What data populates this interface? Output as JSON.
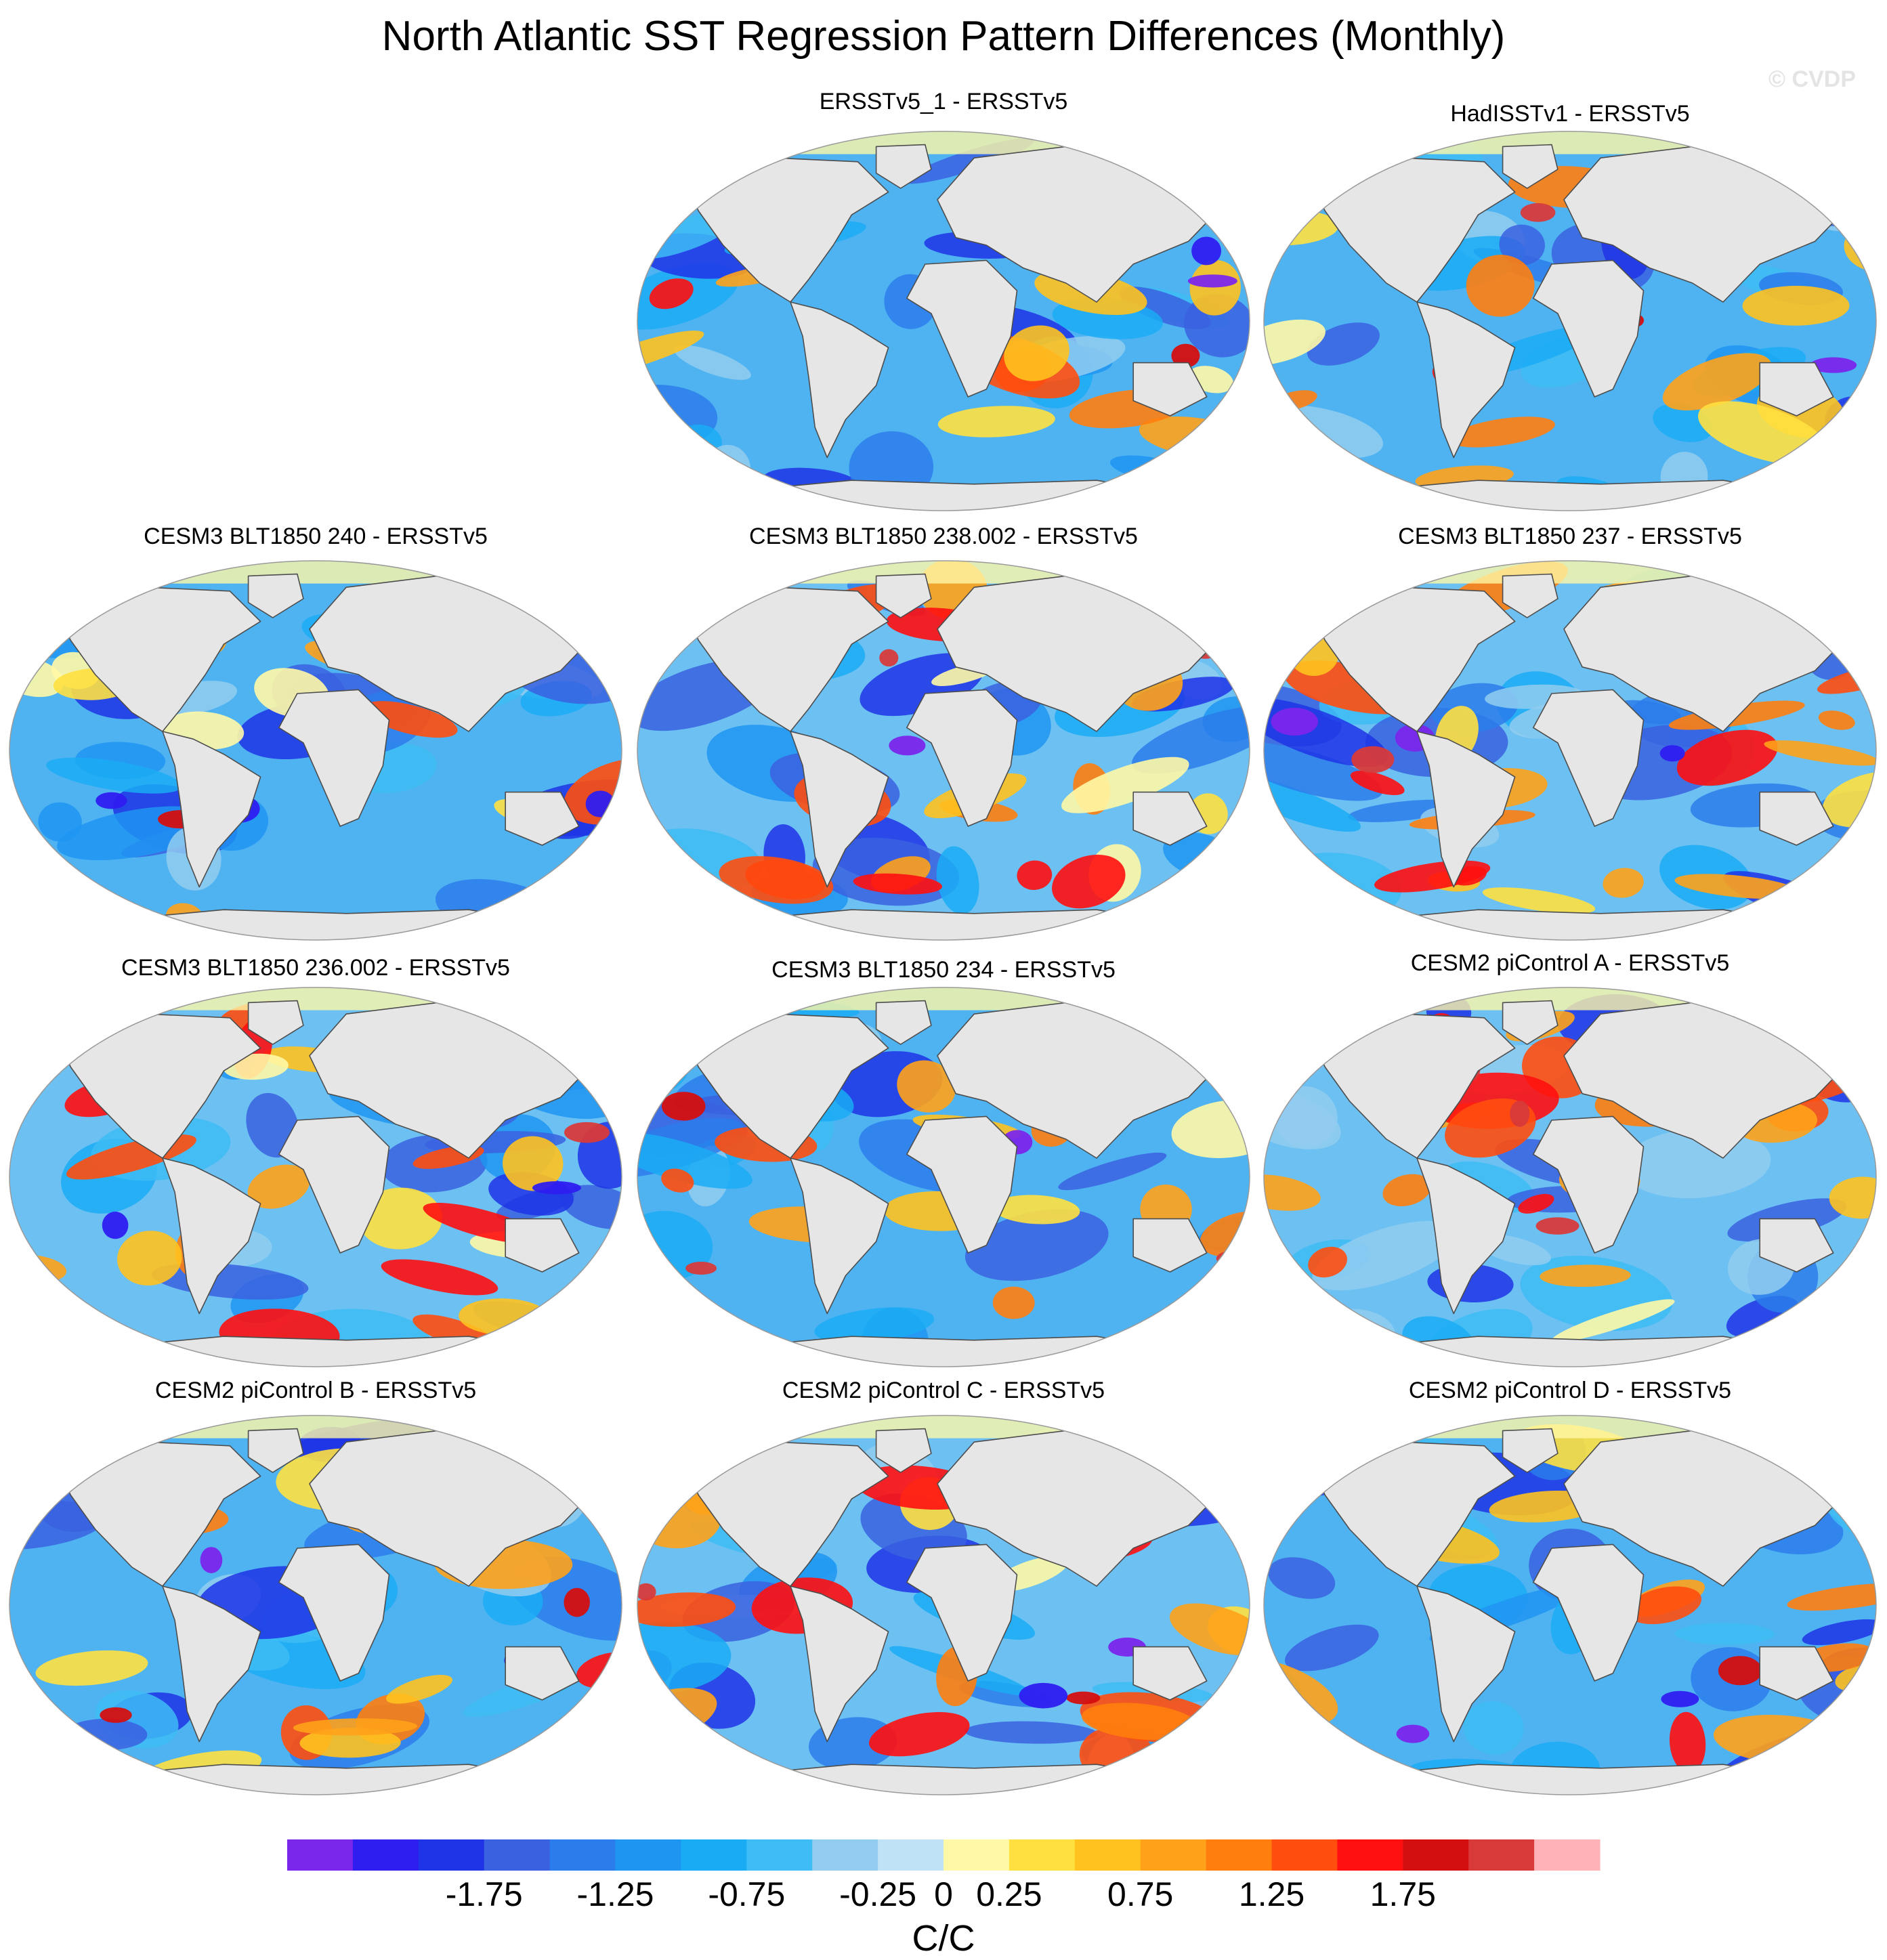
{
  "chart_data": {
    "type": "heatmap",
    "title": "North Atlantic SST Regression Pattern Differences (Monthly)",
    "watermark": "© CVDP",
    "projection": "Robinson (global, 0°E centered)",
    "panels": [
      {
        "id": "p1",
        "title": "ERSSTv5_1 - ERSSTv5",
        "dominant": "blue"
      },
      {
        "id": "p2",
        "title": "HadISSTv1 - ERSSTv5",
        "dominant": "blue"
      },
      {
        "id": "p3",
        "title": "CESM3 BLT1850 240 - ERSSTv5",
        "dominant": "blue"
      },
      {
        "id": "p4",
        "title": "CESM3 BLT1850 238.002 - ERSSTv5",
        "dominant": "mixed"
      },
      {
        "id": "p5",
        "title": "CESM3 BLT1850 237 - ERSSTv5",
        "dominant": "mixed"
      },
      {
        "id": "p6",
        "title": "CESM3 BLT1850 236.002 - ERSSTv5",
        "dominant": "mixed"
      },
      {
        "id": "p7",
        "title": "CESM3 BLT1850 234 - ERSSTv5",
        "dominant": "blue"
      },
      {
        "id": "p8",
        "title": "CESM2 piControl A - ERSSTv5",
        "dominant": "mixed"
      },
      {
        "id": "p9",
        "title": "CESM2 piControl B - ERSSTv5",
        "dominant": "blue"
      },
      {
        "id": "p10",
        "title": "CESM2 piControl C - ERSSTv5",
        "dominant": "mixed"
      },
      {
        "id": "p11",
        "title": "CESM2 piControl D - ERSSTv5",
        "dominant": "blue"
      }
    ],
    "colorbar": {
      "label": "C/C",
      "levels": [
        -2,
        -1.75,
        -1.5,
        -1.25,
        -1,
        -0.75,
        -0.5,
        -0.25,
        0,
        0.25,
        0.5,
        0.75,
        1,
        1.25,
        1.5,
        1.75,
        2
      ],
      "tick_labels": [
        "-1.75",
        "-1.25",
        "-0.75",
        "-0.25",
        "0",
        "0.25",
        "0.75",
        "1.25",
        "1.75"
      ],
      "tick_values": [
        -1.75,
        -1.25,
        -0.75,
        -0.25,
        0,
        0.25,
        0.75,
        1.25,
        1.75
      ],
      "colors": [
        "#7b26eb",
        "#2e1ef0",
        "#1e34e6",
        "#3a62e0",
        "#2c7deb",
        "#1f95f2",
        "#1aabf5",
        "#3dbcf5",
        "#92ccf0",
        "#bfe2f7",
        "#fff8a6",
        "#ffe040",
        "#ffc21f",
        "#ffa21a",
        "#ff7e0e",
        "#ff4e0e",
        "#ff0f0f",
        "#d40f0f",
        "#d83a3a",
        "#ffb3b8"
      ]
    },
    "land_color": "#e6e6e6",
    "coast_color": "#4d4d4d"
  }
}
